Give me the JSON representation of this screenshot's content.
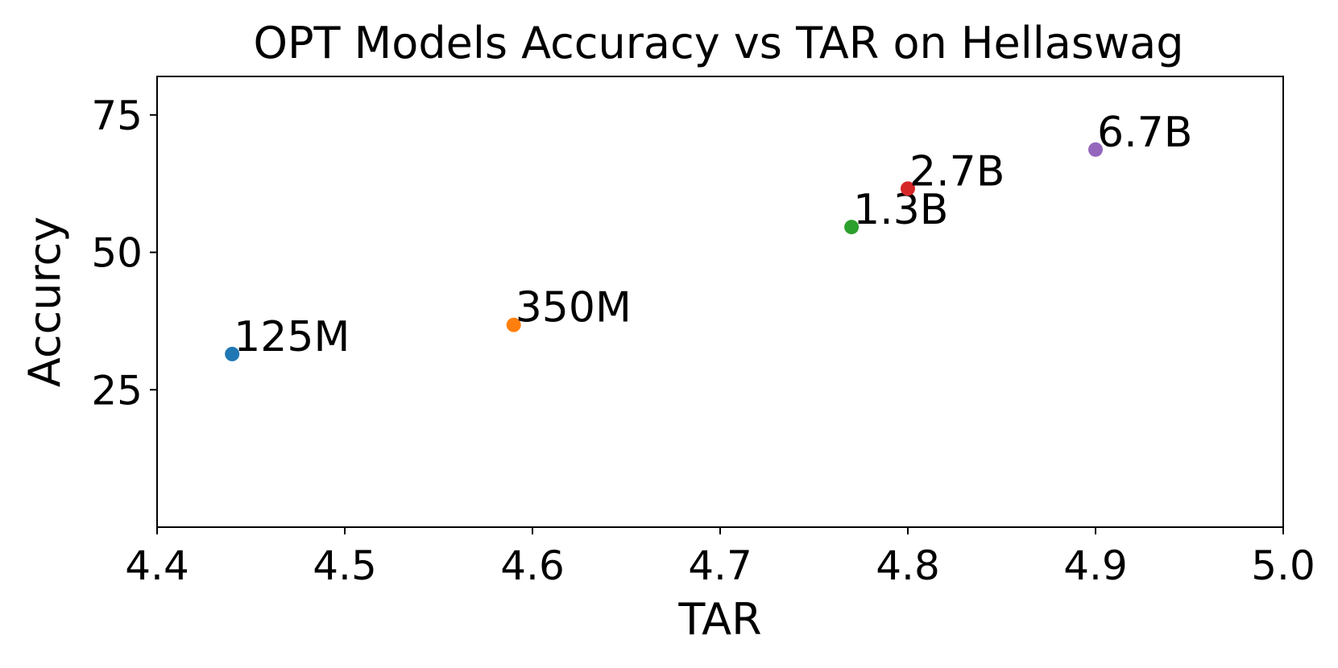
{
  "chart_data": {
    "type": "scatter",
    "title": "OPT Models Accuracy vs TAR on Hellaswag",
    "xlabel": "TAR",
    "ylabel": "Accurcy",
    "xlim": [
      4.4,
      5.0
    ],
    "ylim": [
      0,
      82
    ],
    "xticks": [
      4.4,
      4.5,
      4.6,
      4.7,
      4.8,
      4.9,
      5.0
    ],
    "xtick_labels": [
      "4.4",
      "4.5",
      "4.6",
      "4.7",
      "4.8",
      "4.9",
      "5.0"
    ],
    "yticks": [
      25,
      50,
      75
    ],
    "ytick_labels": [
      "25",
      "50",
      "75"
    ],
    "grid": false,
    "points": [
      {
        "label": "125M",
        "x": 4.44,
        "y": 31.5,
        "color": "#1f77b4"
      },
      {
        "label": "350M",
        "x": 4.59,
        "y": 36.8,
        "color": "#ff7f0e"
      },
      {
        "label": "1.3B",
        "x": 4.77,
        "y": 54.6,
        "color": "#2ca02c"
      },
      {
        "label": "2.7B",
        "x": 4.8,
        "y": 61.6,
        "color": "#d62728"
      },
      {
        "label": "6.7B",
        "x": 4.9,
        "y": 68.7,
        "color": "#9467bd"
      }
    ]
  }
}
